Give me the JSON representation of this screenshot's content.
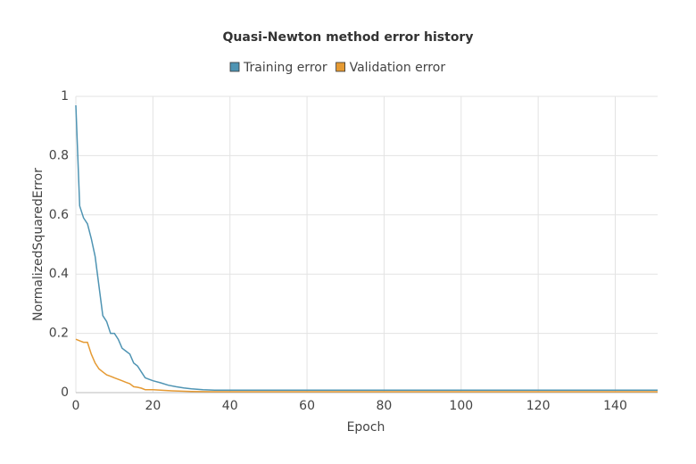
{
  "chart_data": {
    "type": "line",
    "title": "Quasi-Newton method error history",
    "xlabel": "Epoch",
    "ylabel": "NormalizedSquaredError",
    "xlim": [
      0,
      151
    ],
    "ylim": [
      0,
      1
    ],
    "xticks": [
      0,
      20,
      40,
      60,
      80,
      100,
      120,
      140
    ],
    "yticks": [
      0,
      0.2,
      0.4,
      0.6,
      0.8,
      1
    ],
    "grid": true,
    "legend": "top",
    "series": [
      {
        "name": "Training error",
        "color": "#4f94b3",
        "x": [
          0,
          1,
          2,
          3,
          4,
          5,
          6,
          7,
          8,
          9,
          10,
          11,
          12,
          13,
          14,
          15,
          16,
          17,
          18,
          19,
          20,
          22,
          24,
          26,
          28,
          30,
          33,
          36,
          151
        ],
        "values": [
          0.97,
          0.63,
          0.59,
          0.57,
          0.52,
          0.46,
          0.36,
          0.26,
          0.24,
          0.2,
          0.2,
          0.18,
          0.15,
          0.14,
          0.13,
          0.1,
          0.09,
          0.07,
          0.05,
          0.045,
          0.04,
          0.033,
          0.025,
          0.02,
          0.016,
          0.013,
          0.01,
          0.008,
          0.008
        ]
      },
      {
        "name": "Validation error",
        "color": "#e59a33",
        "x": [
          0,
          1,
          2,
          3,
          4,
          5,
          6,
          7,
          8,
          9,
          10,
          11,
          12,
          13,
          14,
          15,
          16,
          17,
          18,
          20,
          22,
          25,
          30,
          35,
          151
        ],
        "values": [
          0.18,
          0.175,
          0.17,
          0.17,
          0.13,
          0.1,
          0.08,
          0.07,
          0.06,
          0.055,
          0.05,
          0.045,
          0.04,
          0.035,
          0.03,
          0.02,
          0.018,
          0.015,
          0.01,
          0.01,
          0.008,
          0.006,
          0.004,
          0.003,
          0.003
        ]
      }
    ]
  }
}
